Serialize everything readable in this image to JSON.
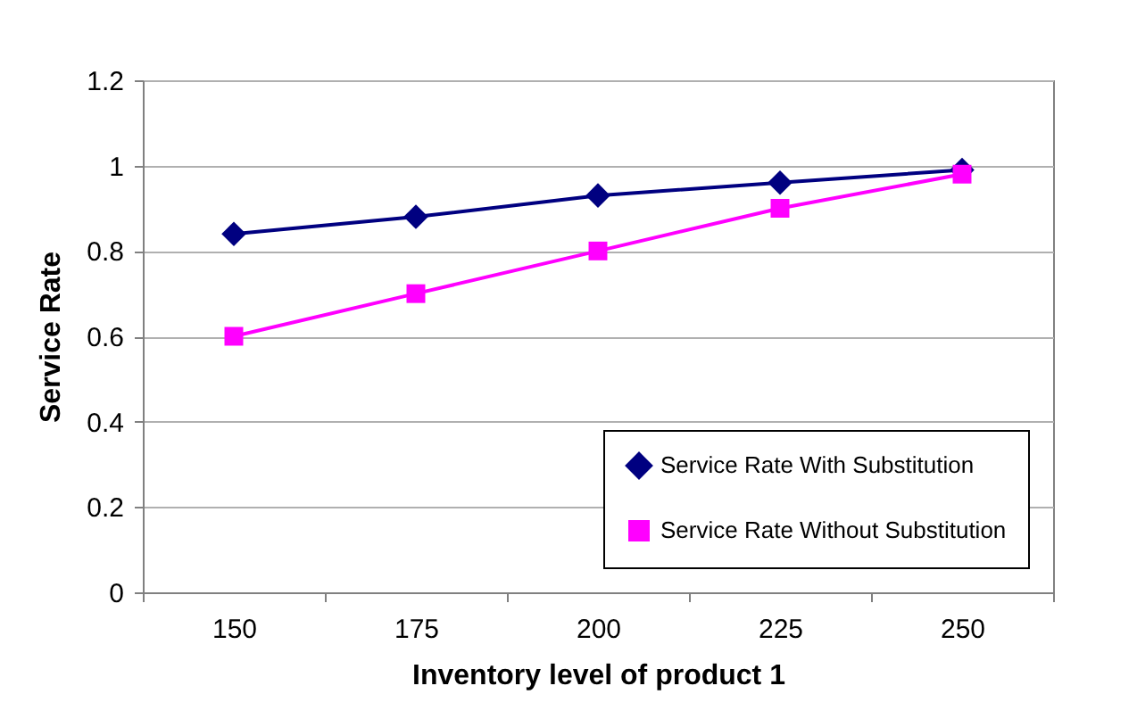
{
  "chart_data": {
    "type": "line",
    "xlabel": "Inventory level of product 1",
    "ylabel": "Service Rate",
    "categories": [
      "150",
      "175",
      "200",
      "225",
      "250"
    ],
    "series": [
      {
        "name": "Service Rate With Substitution",
        "color": "#000080",
        "marker": "diamond",
        "values": [
          0.84,
          0.88,
          0.93,
          0.96,
          0.99
        ]
      },
      {
        "name": "Service Rate Without Substitution",
        "color": "#ff00ff",
        "marker": "square",
        "values": [
          0.6,
          0.7,
          0.8,
          0.9,
          0.98
        ]
      }
    ],
    "ylim": [
      0,
      1.2
    ],
    "yticks": [
      {
        "value": 0,
        "label": "0"
      },
      0.2,
      0.4,
      0.6,
      0.8,
      {
        "value": 1,
        "label": "1"
      },
      1.2
    ],
    "grid": "y",
    "legend": "bottom right"
  }
}
